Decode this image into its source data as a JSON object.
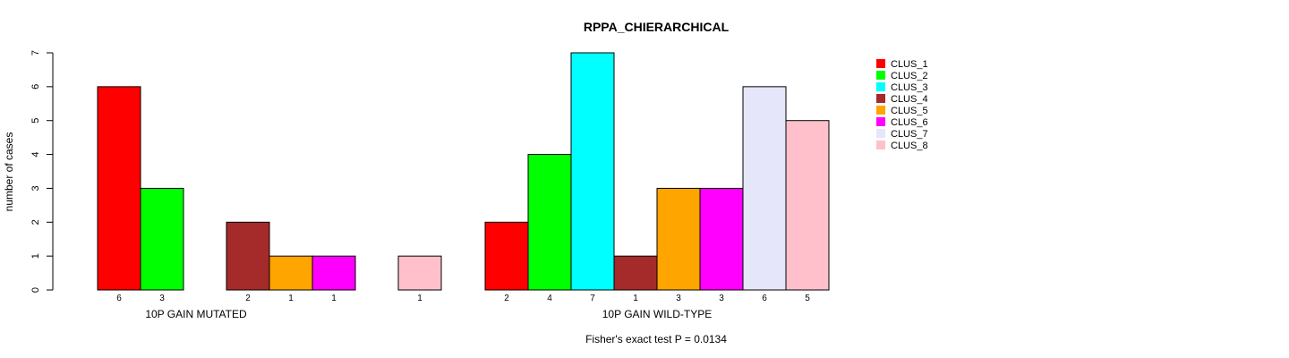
{
  "chart_data": {
    "type": "bar",
    "title": "RPPA_CHIERARCHICAL",
    "ylabel": "number of cases",
    "ylim": [
      0,
      7
    ],
    "yticks": [
      "0",
      "1",
      "2",
      "3",
      "4",
      "5",
      "6",
      "7"
    ],
    "footnote": "Fisher's exact test P = 0.0134",
    "groups": [
      "10P GAIN MUTATED",
      "10P GAIN WILD-TYPE"
    ],
    "series": [
      {
        "name": "CLUS_1",
        "color": "#ff0000",
        "values": [
          6,
          2
        ]
      },
      {
        "name": "CLUS_2",
        "color": "#00ff00",
        "values": [
          3,
          4
        ]
      },
      {
        "name": "CLUS_3",
        "color": "#00ffff",
        "values": [
          0,
          7
        ]
      },
      {
        "name": "CLUS_4",
        "color": "#a52a2a",
        "values": [
          2,
          1
        ]
      },
      {
        "name": "CLUS_5",
        "color": "#ffa500",
        "values": [
          1,
          3
        ]
      },
      {
        "name": "CLUS_6",
        "color": "#ff00ff",
        "values": [
          1,
          3
        ]
      },
      {
        "name": "CLUS_7",
        "color": "#e6e6fa",
        "values": [
          0,
          6
        ]
      },
      {
        "name": "CLUS_8",
        "color": "#ffc0cb",
        "values": [
          1,
          5
        ]
      }
    ],
    "count_labels": [
      [
        "6",
        "3",
        "",
        "2",
        "1",
        "1",
        "",
        "1"
      ],
      [
        "2",
        "4",
        "7",
        "1",
        "3",
        "3",
        "6",
        "5"
      ]
    ],
    "legend_position": "top-right",
    "grid": false
  }
}
